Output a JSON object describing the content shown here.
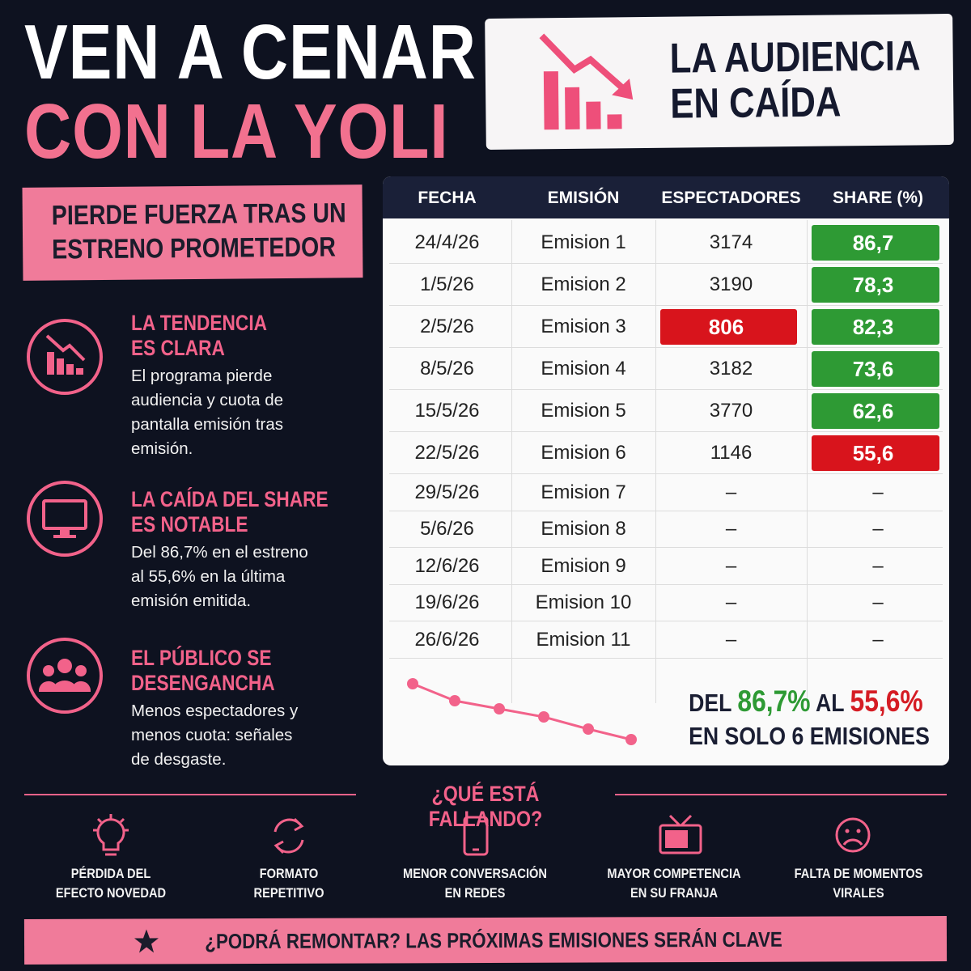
{
  "header": {
    "title_lines": [
      "VEN A CENAR",
      "CON LA YOLI"
    ],
    "badge_lines": [
      "LA AUDIENCIA",
      "EN CAÍDA"
    ]
  },
  "subtitle_lines": [
    "PIERDE FUERZA TRAS UN",
    "ESTRENO PROMETEDOR"
  ],
  "points": [
    {
      "title_lines": [
        "LA TENDENCIA",
        "ES CLARA"
      ],
      "text_lines": [
        "El programa pierde",
        "audiencia y cuota de",
        "pantalla emisión tras",
        "emisión."
      ]
    },
    {
      "title_lines": [
        "LA CAÍDA DEL SHARE",
        "ES NOTABLE"
      ],
      "text_lines": [
        "Del 86,7% en el estreno",
        "al 55,6% en la última",
        "emisión emitida."
      ]
    },
    {
      "title_lines": [
        "EL PÚBLICO SE",
        "DESENGANCHA"
      ],
      "text_lines": [
        "Menos espectadores y",
        "menos cuota: señales",
        "de desgaste."
      ]
    }
  ],
  "table": {
    "columns": [
      "FECHA",
      "EMISIÓN",
      "ESPECTADORES",
      "SHARE (%)"
    ],
    "rows": [
      [
        "24/4/26",
        "Emision 1",
        "3174",
        "86,7"
      ],
      [
        "1/5/26",
        "Emision 2",
        "3190",
        "78,3"
      ],
      [
        "2/5/26",
        "Emision 3",
        "806",
        "82,3"
      ],
      [
        "8/5/26",
        "Emision 4",
        "3182",
        "73,6"
      ],
      [
        "15/5/26",
        "Emision 5",
        "3770",
        "62,6"
      ],
      [
        "22/5/26",
        "Emision 6",
        "1146",
        "55,6"
      ],
      [
        "29/5/26",
        "Emision 7",
        "–",
        "–"
      ],
      [
        "5/6/26",
        "Emision 8",
        "–",
        "–"
      ],
      [
        "12/6/26",
        "Emision 9",
        "–",
        "–"
      ],
      [
        "19/6/26",
        "Emision 10",
        "–",
        "–"
      ],
      [
        "26/6/26",
        "Emision 11",
        "–",
        "–"
      ]
    ]
  },
  "summary": {
    "from_prefix": "DEL",
    "from_value": "86,7%",
    "to_prefix": "AL",
    "to_value": "55,6%",
    "line2": "EN SOLO 6 EMISIONES"
  },
  "failing": {
    "title": "¿QUÉ ESTÁ FALLANDO?",
    "items": [
      [
        "PÉRDIDA DEL",
        "EFECTO NOVEDAD"
      ],
      [
        "FORMATO",
        "REPETITIVO"
      ],
      [
        "MENOR CONVERSACIÓN",
        "EN REDES"
      ],
      [
        "MAYOR COMPETENCIA",
        "EN SU FRANJA"
      ],
      [
        "FALTA DE MOMENTOS",
        "VIRALES"
      ]
    ]
  },
  "footer": "¿PODRÁ REMONTAR? LAS PRÓXIMAS EMISIONES SERÁN CLAVE"
}
